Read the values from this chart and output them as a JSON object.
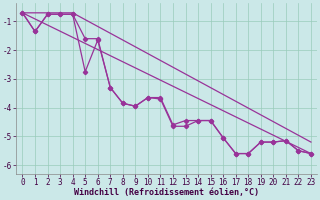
{
  "xlabel": "Windchill (Refroidissement éolien,°C)",
  "background_color": "#cbe8e8",
  "grid_color": "#99ccbb",
  "line_color": "#993399",
  "x_hours": [
    0,
    1,
    2,
    3,
    4,
    5,
    6,
    7,
    8,
    9,
    10,
    11,
    12,
    13,
    14,
    15,
    16,
    17,
    18,
    19,
    20,
    21,
    22,
    23
  ],
  "zigzag1": [
    -0.7,
    -1.35,
    -0.75,
    -0.75,
    -0.75,
    -2.75,
    -1.65,
    -3.3,
    -3.85,
    -3.95,
    -3.65,
    -3.7,
    -4.65,
    -4.65,
    -4.45,
    -4.45,
    -5.05,
    -5.6,
    -5.6,
    -5.2,
    -5.2,
    -5.15,
    -5.5,
    -5.6
  ],
  "zigzag2": [
    -0.7,
    -1.35,
    -0.75,
    -0.75,
    -0.75,
    -1.6,
    -1.6,
    -3.3,
    -3.85,
    -3.95,
    -3.65,
    -3.65,
    -4.6,
    -4.45,
    -4.45,
    -4.45,
    -5.05,
    -5.6,
    -5.6,
    -5.2,
    -5.2,
    -5.15,
    -5.5,
    -5.6
  ],
  "trend1_x": [
    0,
    23
  ],
  "trend1_y": [
    -0.7,
    -5.6
  ],
  "trend2_x": [
    0,
    4,
    23
  ],
  "trend2_y": [
    -0.7,
    -0.7,
    -5.2
  ],
  "ylim": [
    -6.3,
    -0.35
  ],
  "xlim": [
    -0.5,
    23.5
  ],
  "yticks": [
    -6,
    -5,
    -4,
    -3,
    -2,
    -1
  ],
  "xtick_labels": [
    "0",
    "1",
    "2",
    "3",
    "4",
    "5",
    "6",
    "7",
    "8",
    "9",
    "10",
    "11",
    "12",
    "13",
    "14",
    "15",
    "16",
    "17",
    "18",
    "19",
    "20",
    "21",
    "22",
    "23"
  ],
  "font_size_tick": 5.5,
  "font_size_xlabel": 6.0
}
